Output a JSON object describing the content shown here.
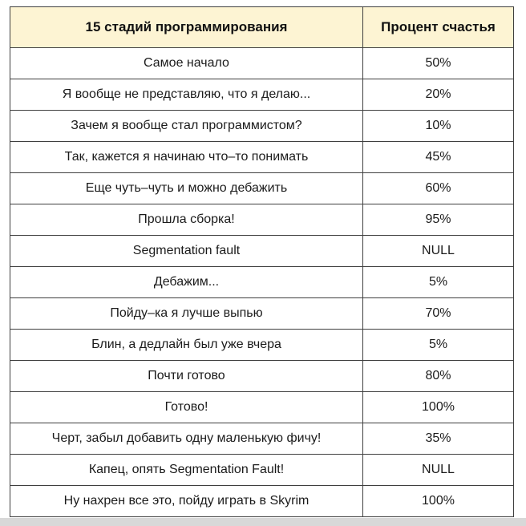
{
  "table": {
    "headers": [
      "15 стадий программирования",
      "Процент счастья"
    ],
    "rows": [
      [
        "Самое начало",
        "50%"
      ],
      [
        "Я вообще не представляю, что я делаю...",
        "20%"
      ],
      [
        "Зачем я вообще стал программистом?",
        "10%"
      ],
      [
        "Так, кажется я начинаю что–то понимать",
        "45%"
      ],
      [
        "Еще чуть–чуть и можно дебажить",
        "60%"
      ],
      [
        "Прошла сборка!",
        "95%"
      ],
      [
        "Segmentation fault",
        "NULL"
      ],
      [
        "Дебажим...",
        "5%"
      ],
      [
        "Пойду–ка я лучше выпью",
        "70%"
      ],
      [
        "Блин, а дедлайн был уже вчера",
        "5%"
      ],
      [
        "Почти готово",
        "80%"
      ],
      [
        "Готово!",
        "100%"
      ],
      [
        "Черт, забыл добавить одну маленькую фичу!",
        "35%"
      ],
      [
        "Капец, опять Segmentation Fault!",
        "NULL"
      ],
      [
        "Ну нахрен все это, пойду играть в Skyrim",
        "100%"
      ]
    ]
  },
  "colors": {
    "header_background": "#fdf4d3",
    "border": "#3f3f3f"
  }
}
